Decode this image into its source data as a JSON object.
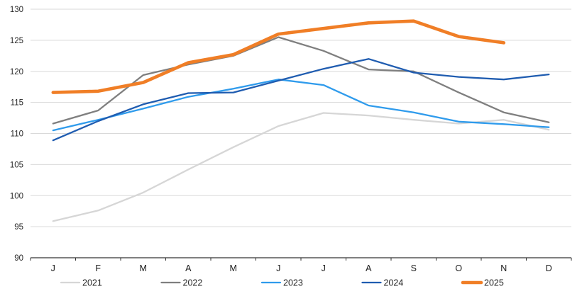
{
  "chart_data": {
    "type": "line",
    "title": "",
    "xlabel": "",
    "ylabel": "",
    "categories": [
      "J",
      "F",
      "M",
      "A",
      "M",
      "J",
      "J",
      "A",
      "S",
      "O",
      "N",
      "D"
    ],
    "y_axis": {
      "min": 90,
      "max": 130,
      "step": 5
    },
    "grid": true,
    "legend_position": "bottom",
    "series": [
      {
        "name": "2021",
        "color": "#D6D6D6",
        "width": 2.3,
        "values": [
          95.9,
          97.6,
          100.5,
          104.2,
          107.8,
          111.2,
          113.3,
          112.9,
          112.2,
          111.6,
          112.2,
          110.6
        ]
      },
      {
        "name": "2022",
        "color": "#7F7F7F",
        "width": 2.3,
        "values": [
          111.6,
          113.7,
          119.4,
          121.1,
          122.5,
          125.5,
          123.3,
          120.3,
          120.0,
          116.6,
          113.4,
          111.8
        ]
      },
      {
        "name": "2023",
        "color": "#2F9BEC",
        "width": 2.3,
        "values": [
          110.5,
          112.2,
          114.0,
          115.9,
          117.2,
          118.7,
          117.8,
          114.5,
          113.4,
          111.9,
          111.5,
          111.0
        ]
      },
      {
        "name": "2024",
        "color": "#1F5CB0",
        "width": 2.3,
        "values": [
          108.9,
          112.0,
          114.7,
          116.5,
          116.6,
          118.5,
          120.4,
          122.0,
          119.8,
          119.1,
          118.7,
          119.5
        ]
      },
      {
        "name": "2025",
        "color": "#F07E26",
        "width": 4.6,
        "values": [
          116.6,
          116.8,
          118.2,
          121.4,
          122.7,
          126.0,
          126.9,
          127.8,
          128.1,
          125.6,
          124.6,
          null
        ]
      }
    ],
    "layout": {
      "plot_left": 43,
      "plot_right": 805,
      "plot_top": 13,
      "axis_y": 364,
      "x_label_y": 383,
      "legend_y": 399,
      "legend_start_cx": 119,
      "legend_spacing": 141.5
    }
  },
  "colors": {
    "background": "#FFFFFF",
    "gridline": "#D9D9D9",
    "axis_line": "#333333",
    "tick": "#333333",
    "label": "#262626"
  }
}
